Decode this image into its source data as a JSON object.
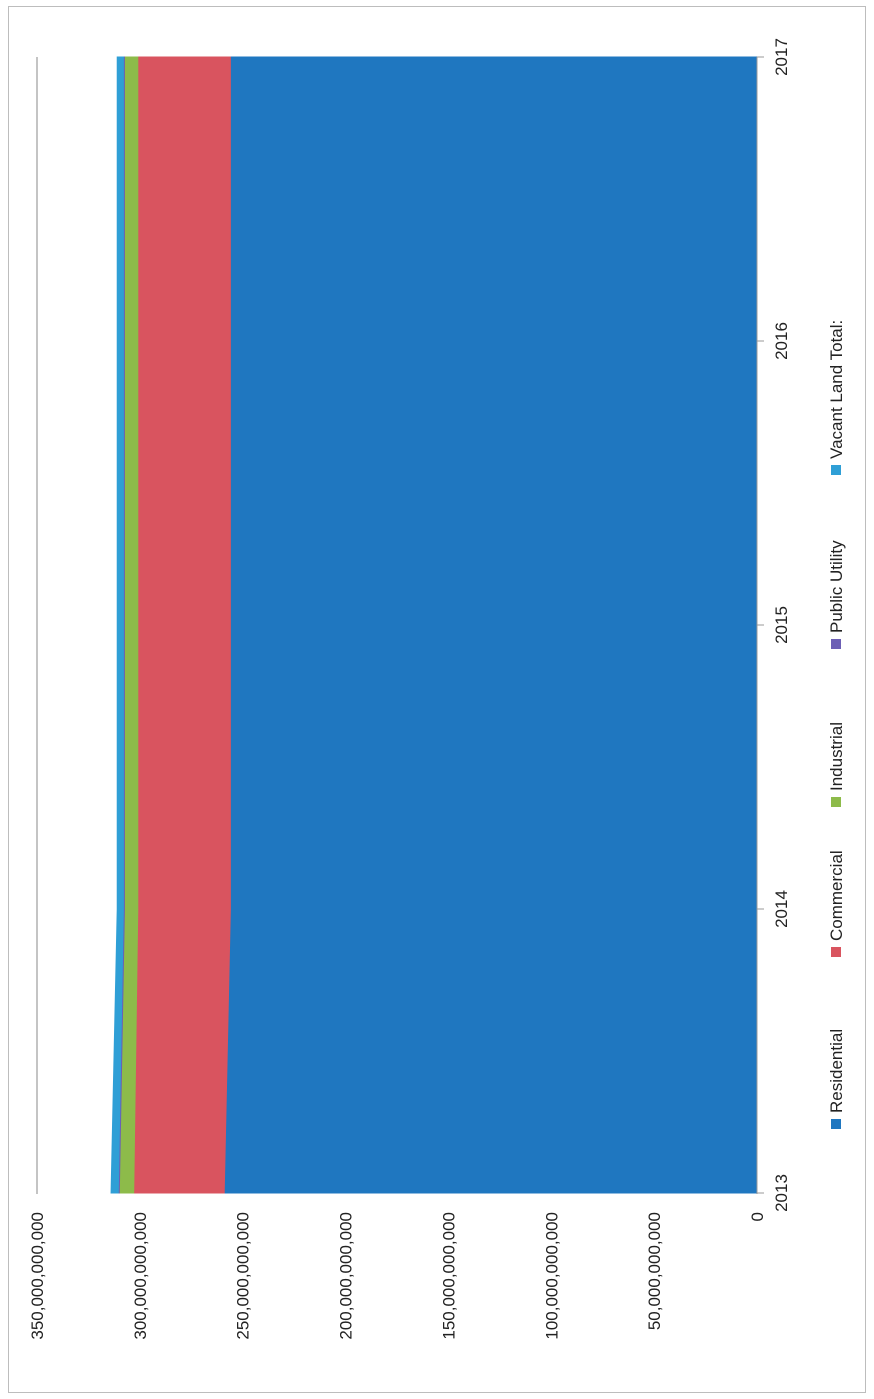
{
  "chart_data": {
    "type": "area",
    "stacked": true,
    "orientation": "rotated-90-clockwise",
    "x": [
      "2013",
      "2014",
      "2015",
      "2016",
      "2017"
    ],
    "ylim": [
      0,
      350000000000
    ],
    "y_ticks": [
      "0",
      "50,000,000,000",
      "100,000,000,000",
      "150,000,000,000",
      "200,000,000,000",
      "250,000,000,000",
      "300,000,000,000",
      "350,000,000,000"
    ],
    "grid": "major gridline at top only",
    "legend_position": "bottom",
    "series": [
      {
        "name": "Residential",
        "color": "#1f77c0",
        "values": [
          259000000000,
          256000000000,
          256000000000,
          256000000000,
          256000000000
        ]
      },
      {
        "name": "Commercial",
        "color": "#d9545f",
        "values": [
          44000000000,
          45000000000,
          45000000000,
          45000000000,
          45000000000
        ]
      },
      {
        "name": "Industrial",
        "color": "#8dbb4a",
        "values": [
          7000000000,
          6500000000,
          6500000000,
          6500000000,
          6500000000
        ]
      },
      {
        "name": "Public Utility",
        "color": "#6c5fb5",
        "values": [
          500000000,
          500000000,
          500000000,
          500000000,
          500000000
        ]
      },
      {
        "name": "Vacant Land Total:",
        "color": "#2f9fd6",
        "values": [
          3500000000,
          3000000000,
          3000000000,
          3000000000,
          3000000000
        ]
      }
    ]
  }
}
